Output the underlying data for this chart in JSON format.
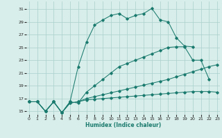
{
  "xlabel": "Humidex (Indice chaleur)",
  "xlim": [
    -0.3,
    23.3
  ],
  "ylim": [
    14.5,
    32.2
  ],
  "yticks": [
    15,
    17,
    19,
    21,
    23,
    25,
    27,
    29,
    31
  ],
  "xticks": [
    0,
    1,
    2,
    3,
    4,
    5,
    6,
    7,
    8,
    9,
    10,
    11,
    12,
    13,
    14,
    15,
    16,
    17,
    18,
    19,
    20,
    21,
    22,
    23
  ],
  "bg_color": "#d8eeea",
  "grid_color": "#aacfcc",
  "line_color": "#1a7a6e",
  "s1_x": [
    0,
    1,
    2,
    3,
    4,
    5,
    6,
    7,
    8,
    9,
    10,
    11,
    12,
    13,
    14,
    15,
    16,
    17,
    18,
    19,
    20
  ],
  "s1_y": [
    16.5,
    16.5,
    15.0,
    16.5,
    14.8,
    16.5,
    22.0,
    25.8,
    28.5,
    29.3,
    30.0,
    30.3,
    29.5,
    30.0,
    30.3,
    31.1,
    29.3,
    29.0,
    26.5,
    25.2,
    25.1
  ],
  "s2_x": [
    0,
    1,
    2,
    3,
    4,
    5,
    6,
    7,
    8,
    9,
    10,
    11,
    12,
    13,
    14,
    15,
    16,
    17,
    18,
    19,
    20,
    21,
    22
  ],
  "s2_y": [
    16.5,
    16.5,
    15.0,
    16.5,
    14.8,
    16.5,
    16.3,
    18.0,
    19.0,
    20.0,
    21.0,
    22.0,
    22.5,
    23.0,
    23.5,
    24.0,
    24.5,
    25.0,
    25.1,
    25.1,
    23.0,
    23.0,
    20.0
  ],
  "s3_x": [
    0,
    1,
    2,
    3,
    4,
    5,
    6,
    7,
    8,
    9,
    10,
    11,
    12,
    13,
    14,
    15,
    16,
    17,
    18,
    19,
    20,
    21,
    22,
    23
  ],
  "s3_y": [
    16.5,
    16.5,
    15.0,
    16.5,
    14.8,
    16.3,
    16.5,
    17.0,
    17.3,
    17.6,
    17.9,
    18.2,
    18.5,
    18.8,
    19.1,
    19.4,
    19.7,
    20.0,
    20.4,
    20.8,
    21.2,
    21.6,
    22.0,
    22.3
  ],
  "s4_x": [
    0,
    1,
    2,
    3,
    4,
    5,
    6,
    7,
    8,
    9,
    10,
    11,
    12,
    13,
    14,
    15,
    16,
    17,
    18,
    19,
    20,
    21,
    22,
    23
  ],
  "s4_y": [
    16.5,
    16.5,
    15.0,
    16.5,
    14.8,
    16.3,
    16.5,
    16.8,
    16.9,
    17.0,
    17.1,
    17.2,
    17.3,
    17.4,
    17.5,
    17.6,
    17.7,
    17.8,
    17.9,
    18.0,
    18.1,
    18.1,
    18.1,
    18.0
  ]
}
